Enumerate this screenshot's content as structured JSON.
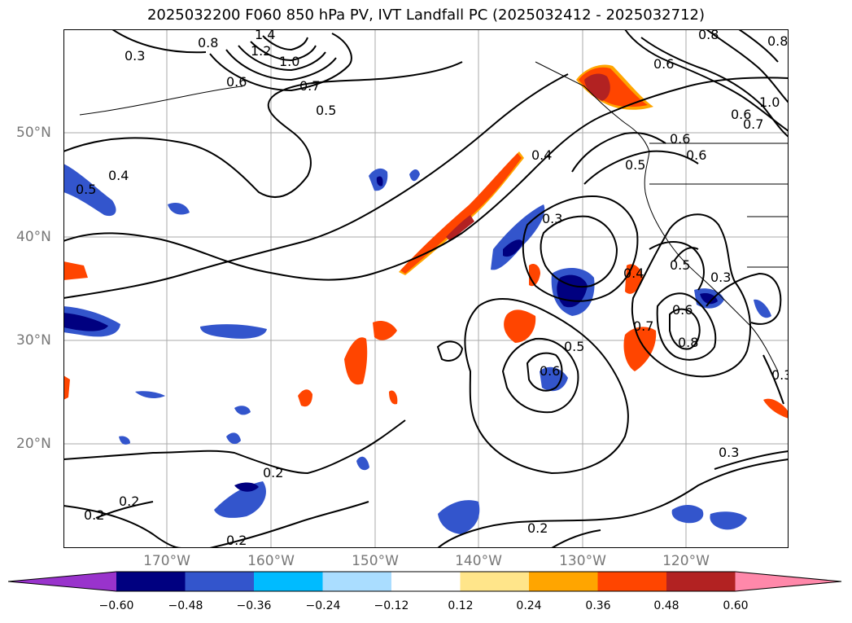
{
  "title": "2025032200 F060 850 hPa PV, IVT Landfall PC (2025032412 - 2025032712)",
  "lon_labels": [
    "170°W",
    "160°W",
    "150°W",
    "140°W",
    "130°W",
    "120°W"
  ],
  "lat_labels": [
    "50°N",
    "40°N",
    "30°N",
    "20°N"
  ],
  "colorbar": {
    "colors": [
      "#9933cc",
      "#000080",
      "#3355cc",
      "#00bbff",
      "#aaddff",
      "#ffffff",
      "#ffe58a",
      "#ffa500",
      "#ff4500",
      "#b22222",
      "#ff88aa"
    ],
    "ticks": [
      "−0.60",
      "−0.48",
      "−0.36",
      "−0.24",
      "−0.12",
      "0.12",
      "0.24",
      "0.36",
      "0.48",
      "0.60"
    ]
  },
  "contour_labels": [
    "0.3",
    "0.8",
    "1.4",
    "1.2",
    "1.0",
    "0.6",
    "0.7",
    "0.5",
    "0.4",
    "0.5",
    "0.6",
    "0.8",
    "0.8",
    "0.6",
    "0.7",
    "1.0",
    "0.6",
    "0.6",
    "0.5",
    "0.4",
    "0.3",
    "0.4",
    "0.5",
    "0.6",
    "0.7",
    "0.8",
    "0.5",
    "0.6",
    "0.3",
    "0.3",
    "0.3",
    "0.2",
    "0.2",
    "0.2",
    "0.2",
    "0.2"
  ]
}
